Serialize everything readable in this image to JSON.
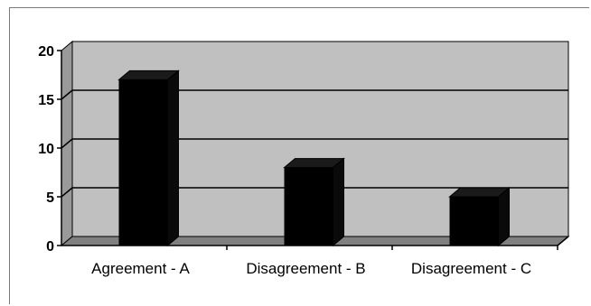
{
  "chart_data": {
    "type": "bar",
    "style": "3d-column",
    "categories": [
      "Agreement - A",
      "Disagreement - B",
      "Disagreement - C"
    ],
    "values": [
      17,
      8,
      5
    ],
    "ylim": [
      0,
      20
    ],
    "yticks": [
      0,
      5,
      10,
      15,
      20
    ],
    "title": "",
    "xlabel": "",
    "ylabel": "",
    "grid": true,
    "legend": "none",
    "colors": {
      "bar": "#000000",
      "wall": "#c0c0c0",
      "floor": "#808080",
      "gridline": "#000000"
    }
  }
}
